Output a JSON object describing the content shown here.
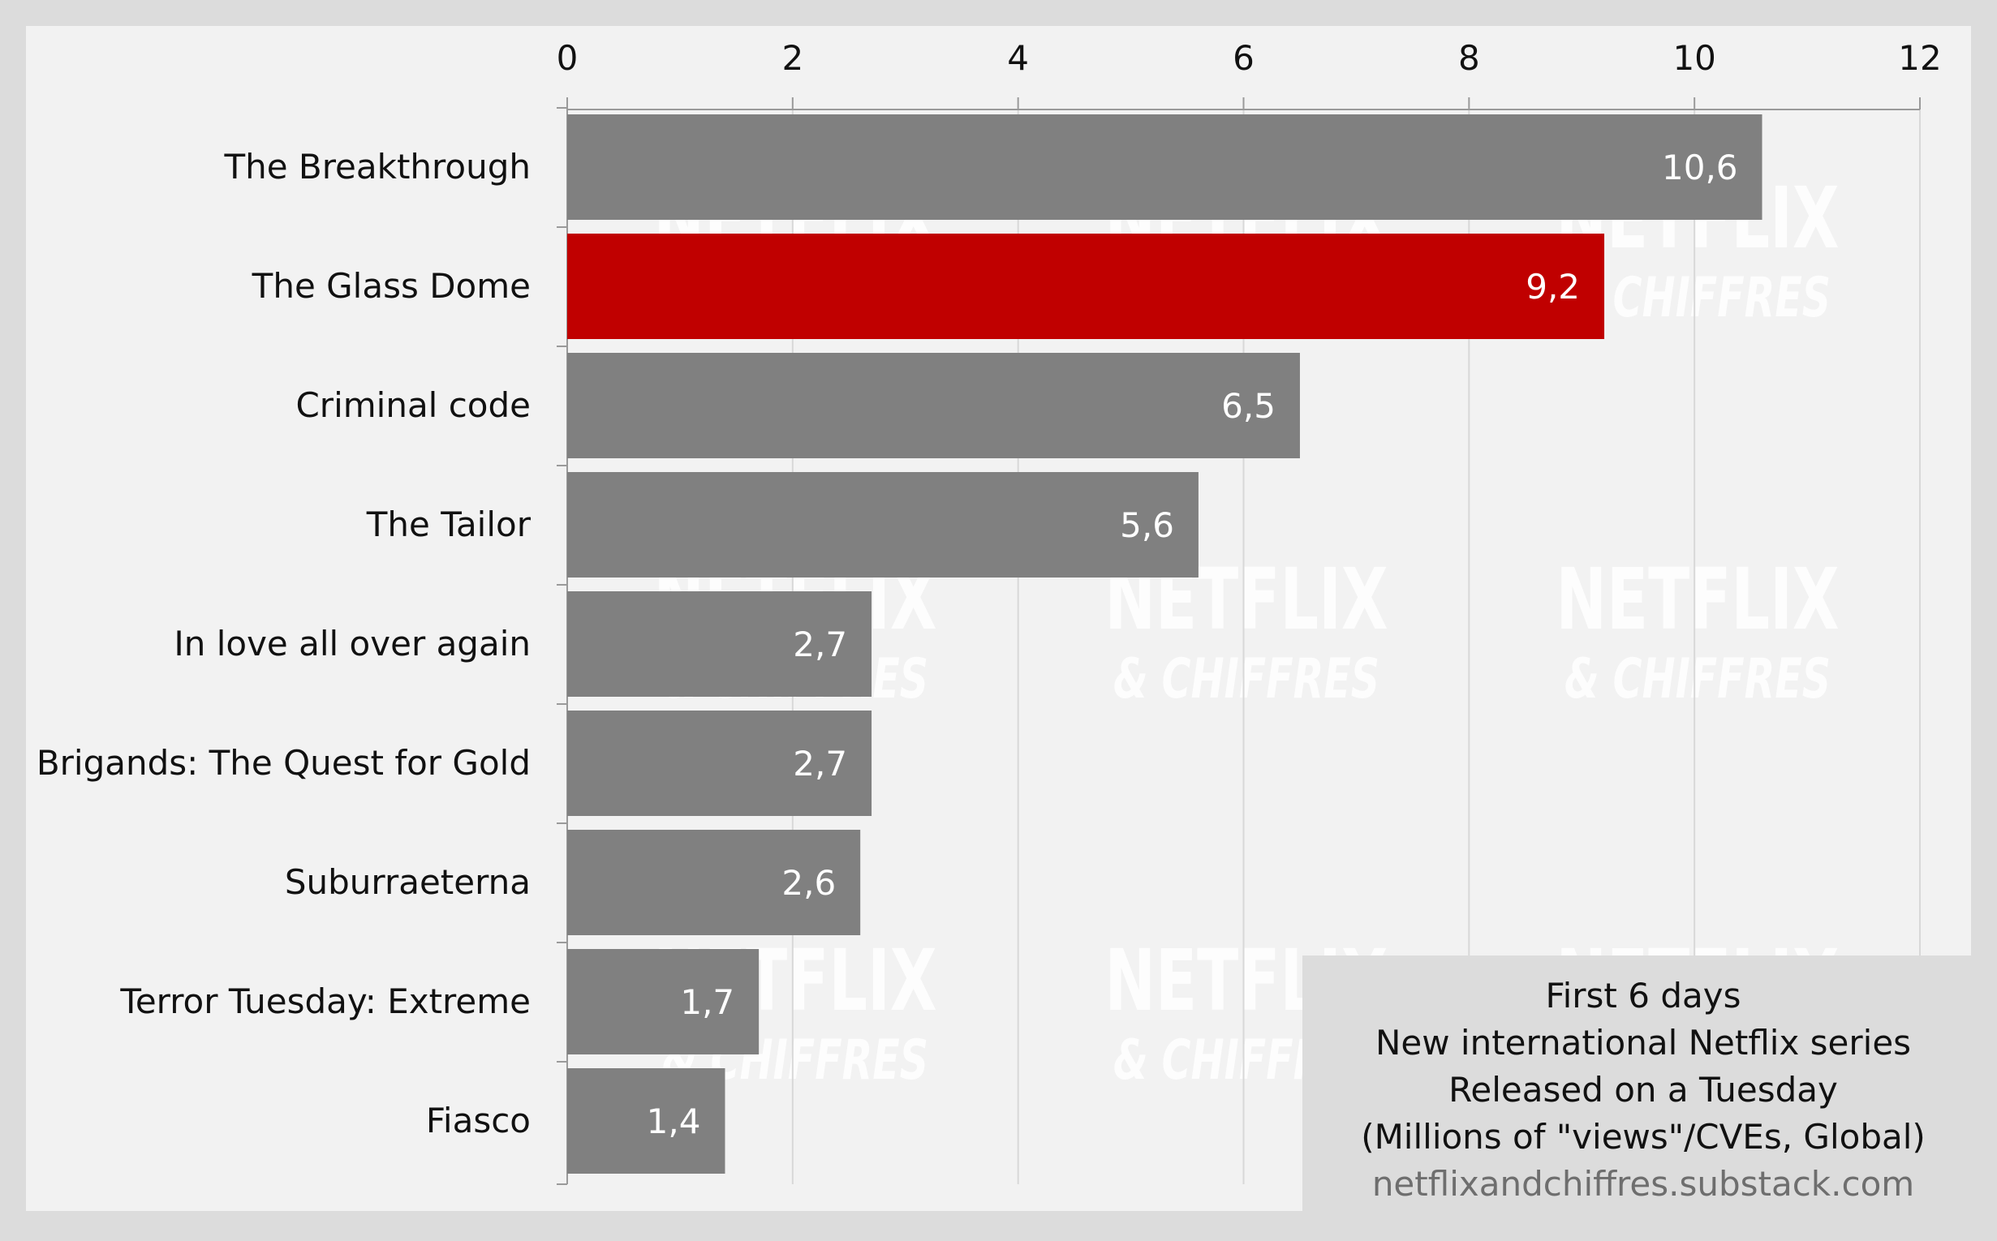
{
  "chart_data": {
    "type": "bar",
    "orientation": "horizontal",
    "categories": [
      "The Breakthrough",
      "The Glass Dome",
      "Criminal code",
      "The Tailor",
      "In love all over again",
      "Brigands: The Quest for Gold",
      "Suburraeterna",
      "Terror Tuesday: Extreme",
      "Fiasco"
    ],
    "values": [
      10.6,
      9.2,
      6.5,
      5.6,
      2.7,
      2.7,
      2.6,
      1.7,
      1.4
    ],
    "data_labels": [
      "10,6",
      "9,2",
      "6,5",
      "5,6",
      "2,7",
      "2,7",
      "2,6",
      "1,7",
      "1,4"
    ],
    "highlight_index": 1,
    "xlim": [
      0,
      12
    ],
    "xticks": [
      0,
      2,
      4,
      6,
      8,
      10,
      12
    ],
    "xaxis_position": "top",
    "grid": true,
    "colors": {
      "bar": "#808080",
      "highlight": "#c00000",
      "plot_background": "#f2f2f2",
      "frame": "#dcdcdc",
      "grid": "#d8d8d8",
      "watermark": "#ffffff"
    },
    "watermark": {
      "line1": "NETFLIX",
      "line2": "& CHIFFRES"
    },
    "annotation": {
      "lines": [
        "First 6 days",
        "New international Netflix series",
        "Released on a Tuesday",
        "(Millions of \"views\"/CVEs, Global)"
      ],
      "source": "netflixandchiffres.substack.com",
      "placement": "bottom-right"
    }
  }
}
